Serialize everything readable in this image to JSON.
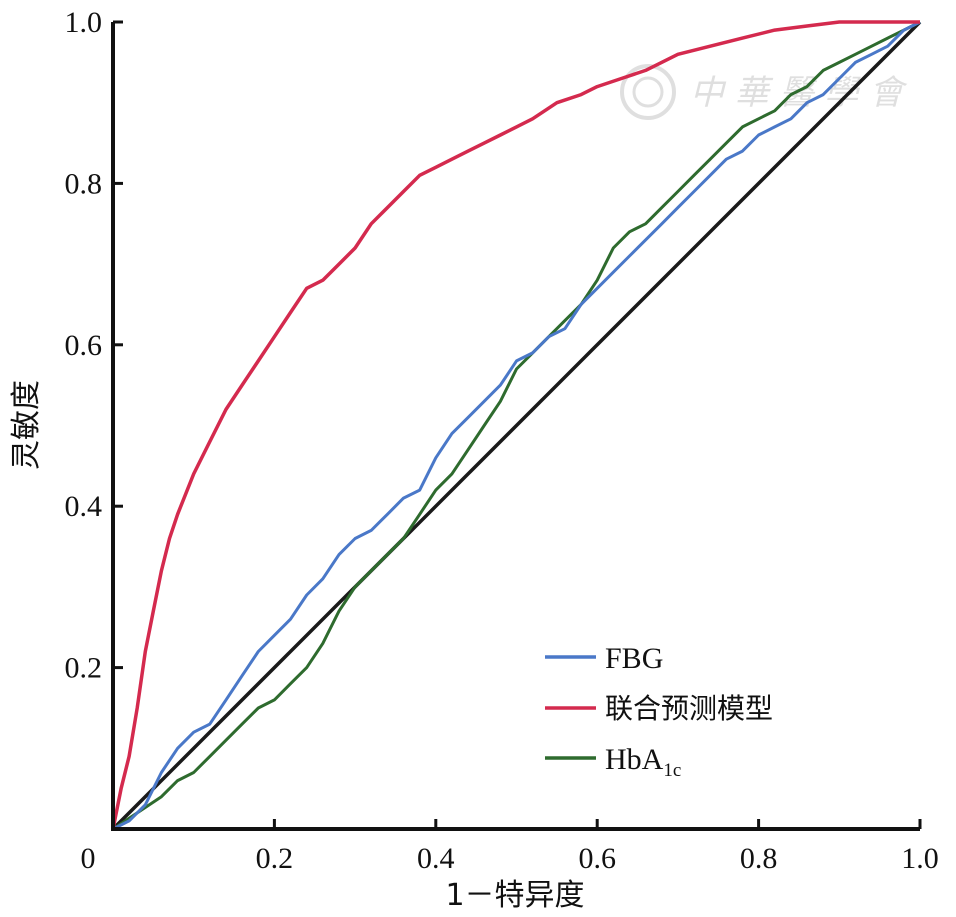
{
  "chart_data": {
    "type": "line",
    "title": "",
    "xlabel": "1－特异度",
    "ylabel": "灵敏度",
    "xlim": [
      0,
      1
    ],
    "ylim": [
      0,
      1
    ],
    "x_ticks": [
      0,
      0.2,
      0.4,
      0.6,
      0.8,
      1.0
    ],
    "x_tick_labels": [
      "0",
      "0.2",
      "0.4",
      "0.6",
      "0.8",
      "1.0"
    ],
    "y_ticks": [
      0.2,
      0.4,
      0.6,
      0.8,
      1.0
    ],
    "y_tick_labels": [
      "0.2",
      "0.4",
      "0.6",
      "0.8",
      "1.0"
    ],
    "grid": false,
    "legend_position": "bottom-right",
    "legend": {
      "fbg": "FBG",
      "combined": "联合预测模型",
      "hba_main": "HbA",
      "hba_sub": "1c"
    },
    "series": [
      {
        "name": "FBG",
        "color": "#4a78c8",
        "x": [
          0,
          0.02,
          0.04,
          0.06,
          0.08,
          0.1,
          0.12,
          0.14,
          0.16,
          0.18,
          0.2,
          0.22,
          0.24,
          0.26,
          0.28,
          0.3,
          0.32,
          0.34,
          0.36,
          0.38,
          0.4,
          0.42,
          0.44,
          0.46,
          0.48,
          0.5,
          0.52,
          0.54,
          0.56,
          0.58,
          0.6,
          0.62,
          0.64,
          0.66,
          0.68,
          0.7,
          0.72,
          0.74,
          0.76,
          0.78,
          0.8,
          0.82,
          0.84,
          0.86,
          0.88,
          0.9,
          0.92,
          0.94,
          0.96,
          0.98,
          1.0
        ],
        "y": [
          0,
          0.01,
          0.03,
          0.07,
          0.1,
          0.12,
          0.13,
          0.16,
          0.19,
          0.22,
          0.24,
          0.26,
          0.29,
          0.31,
          0.34,
          0.36,
          0.37,
          0.39,
          0.41,
          0.42,
          0.46,
          0.49,
          0.51,
          0.53,
          0.55,
          0.58,
          0.59,
          0.61,
          0.62,
          0.65,
          0.67,
          0.69,
          0.71,
          0.73,
          0.75,
          0.77,
          0.79,
          0.81,
          0.83,
          0.84,
          0.86,
          0.87,
          0.88,
          0.9,
          0.91,
          0.93,
          0.95,
          0.96,
          0.97,
          0.99,
          1.0
        ]
      },
      {
        "name": "联合预测模型",
        "color": "#d42a4e",
        "x": [
          0,
          0.01,
          0.02,
          0.03,
          0.04,
          0.05,
          0.06,
          0.07,
          0.08,
          0.1,
          0.12,
          0.14,
          0.16,
          0.18,
          0.2,
          0.22,
          0.24,
          0.26,
          0.28,
          0.3,
          0.32,
          0.34,
          0.36,
          0.38,
          0.4,
          0.42,
          0.44,
          0.46,
          0.48,
          0.5,
          0.52,
          0.55,
          0.58,
          0.6,
          0.63,
          0.66,
          0.7,
          0.74,
          0.78,
          0.82,
          0.86,
          0.9,
          0.95,
          1.0
        ],
        "y": [
          0,
          0.05,
          0.09,
          0.15,
          0.22,
          0.27,
          0.32,
          0.36,
          0.39,
          0.44,
          0.48,
          0.52,
          0.55,
          0.58,
          0.61,
          0.64,
          0.67,
          0.68,
          0.7,
          0.72,
          0.75,
          0.77,
          0.79,
          0.81,
          0.82,
          0.83,
          0.84,
          0.85,
          0.86,
          0.87,
          0.88,
          0.9,
          0.91,
          0.92,
          0.93,
          0.94,
          0.96,
          0.97,
          0.98,
          0.99,
          0.995,
          1.0,
          1.0,
          1.0
        ]
      },
      {
        "name": "HbA1c",
        "color": "#2e6b2e",
        "x": [
          0,
          0.03,
          0.06,
          0.08,
          0.1,
          0.12,
          0.14,
          0.16,
          0.18,
          0.2,
          0.22,
          0.24,
          0.26,
          0.28,
          0.3,
          0.32,
          0.34,
          0.36,
          0.38,
          0.4,
          0.42,
          0.44,
          0.46,
          0.48,
          0.5,
          0.52,
          0.54,
          0.56,
          0.58,
          0.6,
          0.62,
          0.64,
          0.66,
          0.68,
          0.7,
          0.72,
          0.74,
          0.76,
          0.78,
          0.8,
          0.82,
          0.84,
          0.86,
          0.88,
          0.9,
          0.92,
          0.94,
          0.96,
          0.98,
          1.0
        ],
        "y": [
          0,
          0.02,
          0.04,
          0.06,
          0.07,
          0.09,
          0.11,
          0.13,
          0.15,
          0.16,
          0.18,
          0.2,
          0.23,
          0.27,
          0.3,
          0.32,
          0.34,
          0.36,
          0.39,
          0.42,
          0.44,
          0.47,
          0.5,
          0.53,
          0.57,
          0.59,
          0.61,
          0.63,
          0.65,
          0.68,
          0.72,
          0.74,
          0.75,
          0.77,
          0.79,
          0.81,
          0.83,
          0.85,
          0.87,
          0.88,
          0.89,
          0.91,
          0.92,
          0.94,
          0.95,
          0.96,
          0.97,
          0.98,
          0.99,
          1.0
        ]
      },
      {
        "name": "",
        "color": "#1a1a1a",
        "x": [
          0,
          1
        ],
        "y": [
          0,
          1
        ]
      }
    ]
  }
}
